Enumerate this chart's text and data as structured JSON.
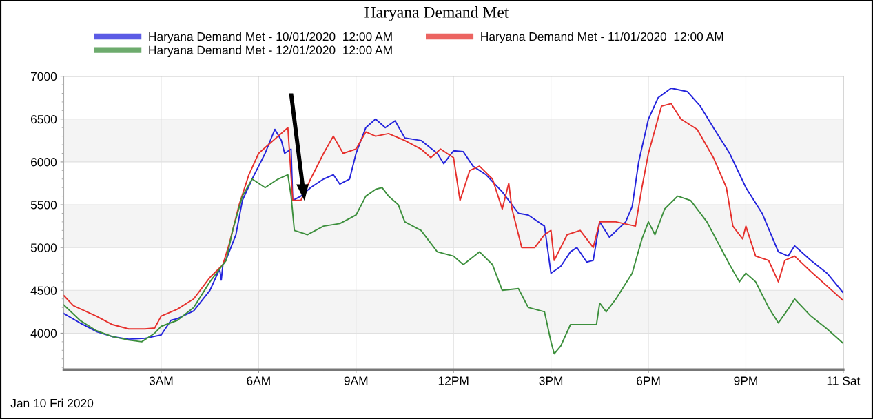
{
  "chart_data": {
    "type": "line",
    "title": "Haryana Demand Met",
    "xlim": [
      "2020-01-10T00:00",
      "2020-01-11T00:00"
    ],
    "ylim": [
      3575,
      7000
    ],
    "xticks": [
      {
        "value": "2020-01-10T03:00",
        "label": "3AM"
      },
      {
        "value": "2020-01-10T06:00",
        "label": "6AM"
      },
      {
        "value": "2020-01-10T09:00",
        "label": "9AM"
      },
      {
        "value": "2020-01-10T12:00",
        "label": "12PM"
      },
      {
        "value": "2020-01-10T15:00",
        "label": "3PM"
      },
      {
        "value": "2020-01-10T18:00",
        "label": "6PM"
      },
      {
        "value": "2020-01-10T21:00",
        "label": "9PM"
      },
      {
        "value": "2020-01-11T00:00",
        "label": "11 Sat"
      }
    ],
    "yticks": [
      4000,
      4500,
      5000,
      5500,
      6000,
      6500,
      7000
    ],
    "grid": true,
    "legend": "top",
    "line_style": "solid",
    "marker": "none",
    "bands": [
      {
        "axis": "y",
        "from": 4000,
        "to": 4500,
        "color": "#f4f4f4"
      },
      {
        "axis": "y",
        "from": 5000,
        "to": 5500,
        "color": "#f4f4f4"
      },
      {
        "axis": "y",
        "from": 6000,
        "to": 6500,
        "color": "#f4f4f4"
      }
    ],
    "annotations": [
      "Jan 10 Fri 2020"
    ],
    "series": [
      {
        "name": "Haryana Demand Met - 10/01/2020  12:00 AM",
        "color": "#2424dc",
        "x": [
          "2020-01-10T00:00",
          "2020-01-10T00:30",
          "2020-01-10T01:00",
          "2020-01-10T01:30",
          "2020-01-10T02:00",
          "2020-01-10T02:30",
          "2020-01-10T03:00",
          "2020-01-10T03:18",
          "2020-01-10T03:30",
          "2020-01-10T04:00",
          "2020-01-10T04:30",
          "2020-01-10T04:48",
          "2020-01-10T04:51",
          "2020-01-10T04:54",
          "2020-01-10T05:00",
          "2020-01-10T05:18",
          "2020-01-10T05:30",
          "2020-01-10T05:48",
          "2020-01-10T06:00",
          "2020-01-10T06:12",
          "2020-01-10T06:30",
          "2020-01-10T06:42",
          "2020-01-10T06:48",
          "2020-01-10T07:00",
          "2020-01-10T07:03",
          "2020-01-10T07:18",
          "2020-01-10T07:36",
          "2020-01-10T08:00",
          "2020-01-10T08:18",
          "2020-01-10T08:30",
          "2020-01-10T08:48",
          "2020-01-10T09:00",
          "2020-01-10T09:18",
          "2020-01-10T09:36",
          "2020-01-10T09:54",
          "2020-01-10T10:12",
          "2020-01-10T10:30",
          "2020-01-10T11:00",
          "2020-01-10T11:30",
          "2020-01-10T11:42",
          "2020-01-10T12:00",
          "2020-01-10T12:18",
          "2020-01-10T12:36",
          "2020-01-10T13:00",
          "2020-01-10T13:30",
          "2020-01-10T14:00",
          "2020-01-10T14:18",
          "2020-01-10T14:48",
          "2020-01-10T15:00",
          "2020-01-10T15:18",
          "2020-01-10T15:36",
          "2020-01-10T15:48",
          "2020-01-10T16:06",
          "2020-01-10T16:18",
          "2020-01-10T16:30",
          "2020-01-10T16:48",
          "2020-01-10T17:18",
          "2020-01-10T17:30",
          "2020-01-10T17:42",
          "2020-01-10T18:00",
          "2020-01-10T18:18",
          "2020-01-10T18:42",
          "2020-01-10T19:12",
          "2020-01-10T19:36",
          "2020-01-10T20:00",
          "2020-01-10T20:30",
          "2020-01-10T21:00",
          "2020-01-10T21:30",
          "2020-01-10T22:00",
          "2020-01-10T22:18",
          "2020-01-10T22:30",
          "2020-01-10T23:00",
          "2020-01-10T23:30",
          "2020-01-11T00:00"
        ],
        "values": [
          4230,
          4120,
          4020,
          3960,
          3930,
          3940,
          3980,
          4150,
          4170,
          4260,
          4500,
          4750,
          4620,
          4800,
          4860,
          5150,
          5550,
          5800,
          5950,
          6100,
          6380,
          6250,
          6100,
          6150,
          5550,
          5600,
          5700,
          5800,
          5850,
          5740,
          5800,
          6100,
          6400,
          6500,
          6400,
          6480,
          6280,
          6250,
          6100,
          5980,
          6130,
          6120,
          5950,
          5850,
          5650,
          5400,
          5380,
          5250,
          4700,
          4780,
          4950,
          5000,
          4830,
          4850,
          5300,
          5120,
          5300,
          5480,
          6000,
          6500,
          6750,
          6860,
          6820,
          6650,
          6400,
          6100,
          5700,
          5400,
          4950,
          4900,
          5020,
          4850,
          4700,
          4470
        ]
      },
      {
        "name": "Haryana Demand Met - 11/01/2020  12:00 AM",
        "color": "#e6302c",
        "x": [
          "2020-01-10T00:00",
          "2020-01-10T00:18",
          "2020-01-10T01:00",
          "2020-01-10T01:30",
          "2020-01-10T02:00",
          "2020-01-10T02:30",
          "2020-01-10T02:48",
          "2020-01-10T03:00",
          "2020-01-10T03:30",
          "2020-01-10T04:00",
          "2020-01-10T04:30",
          "2020-01-10T04:54",
          "2020-01-10T05:06",
          "2020-01-10T05:24",
          "2020-01-10T05:42",
          "2020-01-10T06:00",
          "2020-01-10T06:18",
          "2020-01-10T06:36",
          "2020-01-10T06:54",
          "2020-01-10T07:03",
          "2020-01-10T07:18",
          "2020-01-10T07:36",
          "2020-01-10T08:00",
          "2020-01-10T08:18",
          "2020-01-10T08:36",
          "2020-01-10T09:00",
          "2020-01-10T09:18",
          "2020-01-10T09:36",
          "2020-01-10T10:00",
          "2020-01-10T10:30",
          "2020-01-10T11:00",
          "2020-01-10T11:18",
          "2020-01-10T11:36",
          "2020-01-10T12:00",
          "2020-01-10T12:12",
          "2020-01-10T12:30",
          "2020-01-10T12:48",
          "2020-01-10T13:12",
          "2020-01-10T13:30",
          "2020-01-10T13:42",
          "2020-01-10T13:48",
          "2020-01-10T14:06",
          "2020-01-10T14:30",
          "2020-01-10T14:48",
          "2020-01-10T15:00",
          "2020-01-10T15:06",
          "2020-01-10T15:30",
          "2020-01-10T15:54",
          "2020-01-10T16:18",
          "2020-01-10T16:30",
          "2020-01-10T17:00",
          "2020-01-10T17:36",
          "2020-01-10T17:48",
          "2020-01-10T18:00",
          "2020-01-10T18:24",
          "2020-01-10T18:42",
          "2020-01-10T19:00",
          "2020-01-10T19:30",
          "2020-01-10T20:00",
          "2020-01-10T20:24",
          "2020-01-10T20:36",
          "2020-01-10T20:54",
          "2020-01-10T21:00",
          "2020-01-10T21:18",
          "2020-01-10T21:42",
          "2020-01-10T22:00",
          "2020-01-10T22:12",
          "2020-01-10T22:30",
          "2020-01-10T23:00",
          "2020-01-10T23:30",
          "2020-01-11T00:00"
        ],
        "values": [
          4440,
          4320,
          4200,
          4100,
          4050,
          4050,
          4060,
          4200,
          4280,
          4400,
          4650,
          4800,
          5050,
          5500,
          5850,
          6100,
          6200,
          6300,
          6400,
          5550,
          5550,
          5800,
          6100,
          6300,
          6100,
          6150,
          6350,
          6300,
          6330,
          6250,
          6150,
          6050,
          6150,
          6050,
          5550,
          5900,
          5950,
          5800,
          5450,
          5750,
          5450,
          5000,
          5000,
          5150,
          5200,
          4850,
          5150,
          5200,
          5000,
          5300,
          5300,
          5250,
          5700,
          6100,
          6650,
          6680,
          6500,
          6380,
          6050,
          5700,
          5250,
          5100,
          5250,
          4900,
          4850,
          4600,
          4850,
          4900,
          4720,
          4550,
          4380
        ]
      },
      {
        "name": "Haryana Demand Met - 12/01/2020  12:00 AM",
        "color": "#3c8f3c",
        "x": [
          "2020-01-10T00:00",
          "2020-01-10T00:30",
          "2020-01-10T01:00",
          "2020-01-10T01:30",
          "2020-01-10T02:00",
          "2020-01-10T02:24",
          "2020-01-10T02:48",
          "2020-01-10T03:00",
          "2020-01-10T03:30",
          "2020-01-10T04:00",
          "2020-01-10T04:30",
          "2020-01-10T05:00",
          "2020-01-10T05:12",
          "2020-01-10T05:30",
          "2020-01-10T05:48",
          "2020-01-10T06:12",
          "2020-01-10T06:36",
          "2020-01-10T06:54",
          "2020-01-10T07:00",
          "2020-01-10T07:06",
          "2020-01-10T07:30",
          "2020-01-10T08:00",
          "2020-01-10T08:30",
          "2020-01-10T09:00",
          "2020-01-10T09:18",
          "2020-01-10T09:36",
          "2020-01-10T09:48",
          "2020-01-10T10:00",
          "2020-01-10T10:18",
          "2020-01-10T10:30",
          "2020-01-10T11:00",
          "2020-01-10T11:30",
          "2020-01-10T12:00",
          "2020-01-10T12:18",
          "2020-01-10T12:48",
          "2020-01-10T13:12",
          "2020-01-10T13:30",
          "2020-01-10T14:00",
          "2020-01-10T14:18",
          "2020-01-10T14:48",
          "2020-01-10T15:00",
          "2020-01-10T15:06",
          "2020-01-10T15:18",
          "2020-01-10T15:36",
          "2020-01-10T16:00",
          "2020-01-10T16:24",
          "2020-01-10T16:30",
          "2020-01-10T16:42",
          "2020-01-10T17:00",
          "2020-01-10T17:30",
          "2020-01-10T17:48",
          "2020-01-10T18:00",
          "2020-01-10T18:12",
          "2020-01-10T18:30",
          "2020-01-10T18:54",
          "2020-01-10T19:18",
          "2020-01-10T19:48",
          "2020-01-10T20:30",
          "2020-01-10T20:48",
          "2020-01-10T21:00",
          "2020-01-10T21:18",
          "2020-01-10T21:42",
          "2020-01-10T22:00",
          "2020-01-10T22:18",
          "2020-01-10T22:30",
          "2020-01-10T23:00",
          "2020-01-10T23:30",
          "2020-01-11T00:00"
        ],
        "values": [
          4330,
          4150,
          4030,
          3960,
          3920,
          3900,
          4000,
          4080,
          4150,
          4300,
          4600,
          4850,
          5200,
          5600,
          5800,
          5700,
          5800,
          5850,
          5600,
          5200,
          5150,
          5250,
          5280,
          5380,
          5600,
          5680,
          5700,
          5600,
          5500,
          5300,
          5200,
          4950,
          4900,
          4800,
          4950,
          4800,
          4500,
          4520,
          4300,
          4250,
          3900,
          3760,
          3850,
          4100,
          4100,
          4100,
          4350,
          4250,
          4400,
          4700,
          5100,
          5300,
          5150,
          5450,
          5600,
          5550,
          5300,
          4800,
          4600,
          4700,
          4600,
          4300,
          4120,
          4280,
          4400,
          4200,
          4050,
          3880
        ]
      }
    ]
  }
}
